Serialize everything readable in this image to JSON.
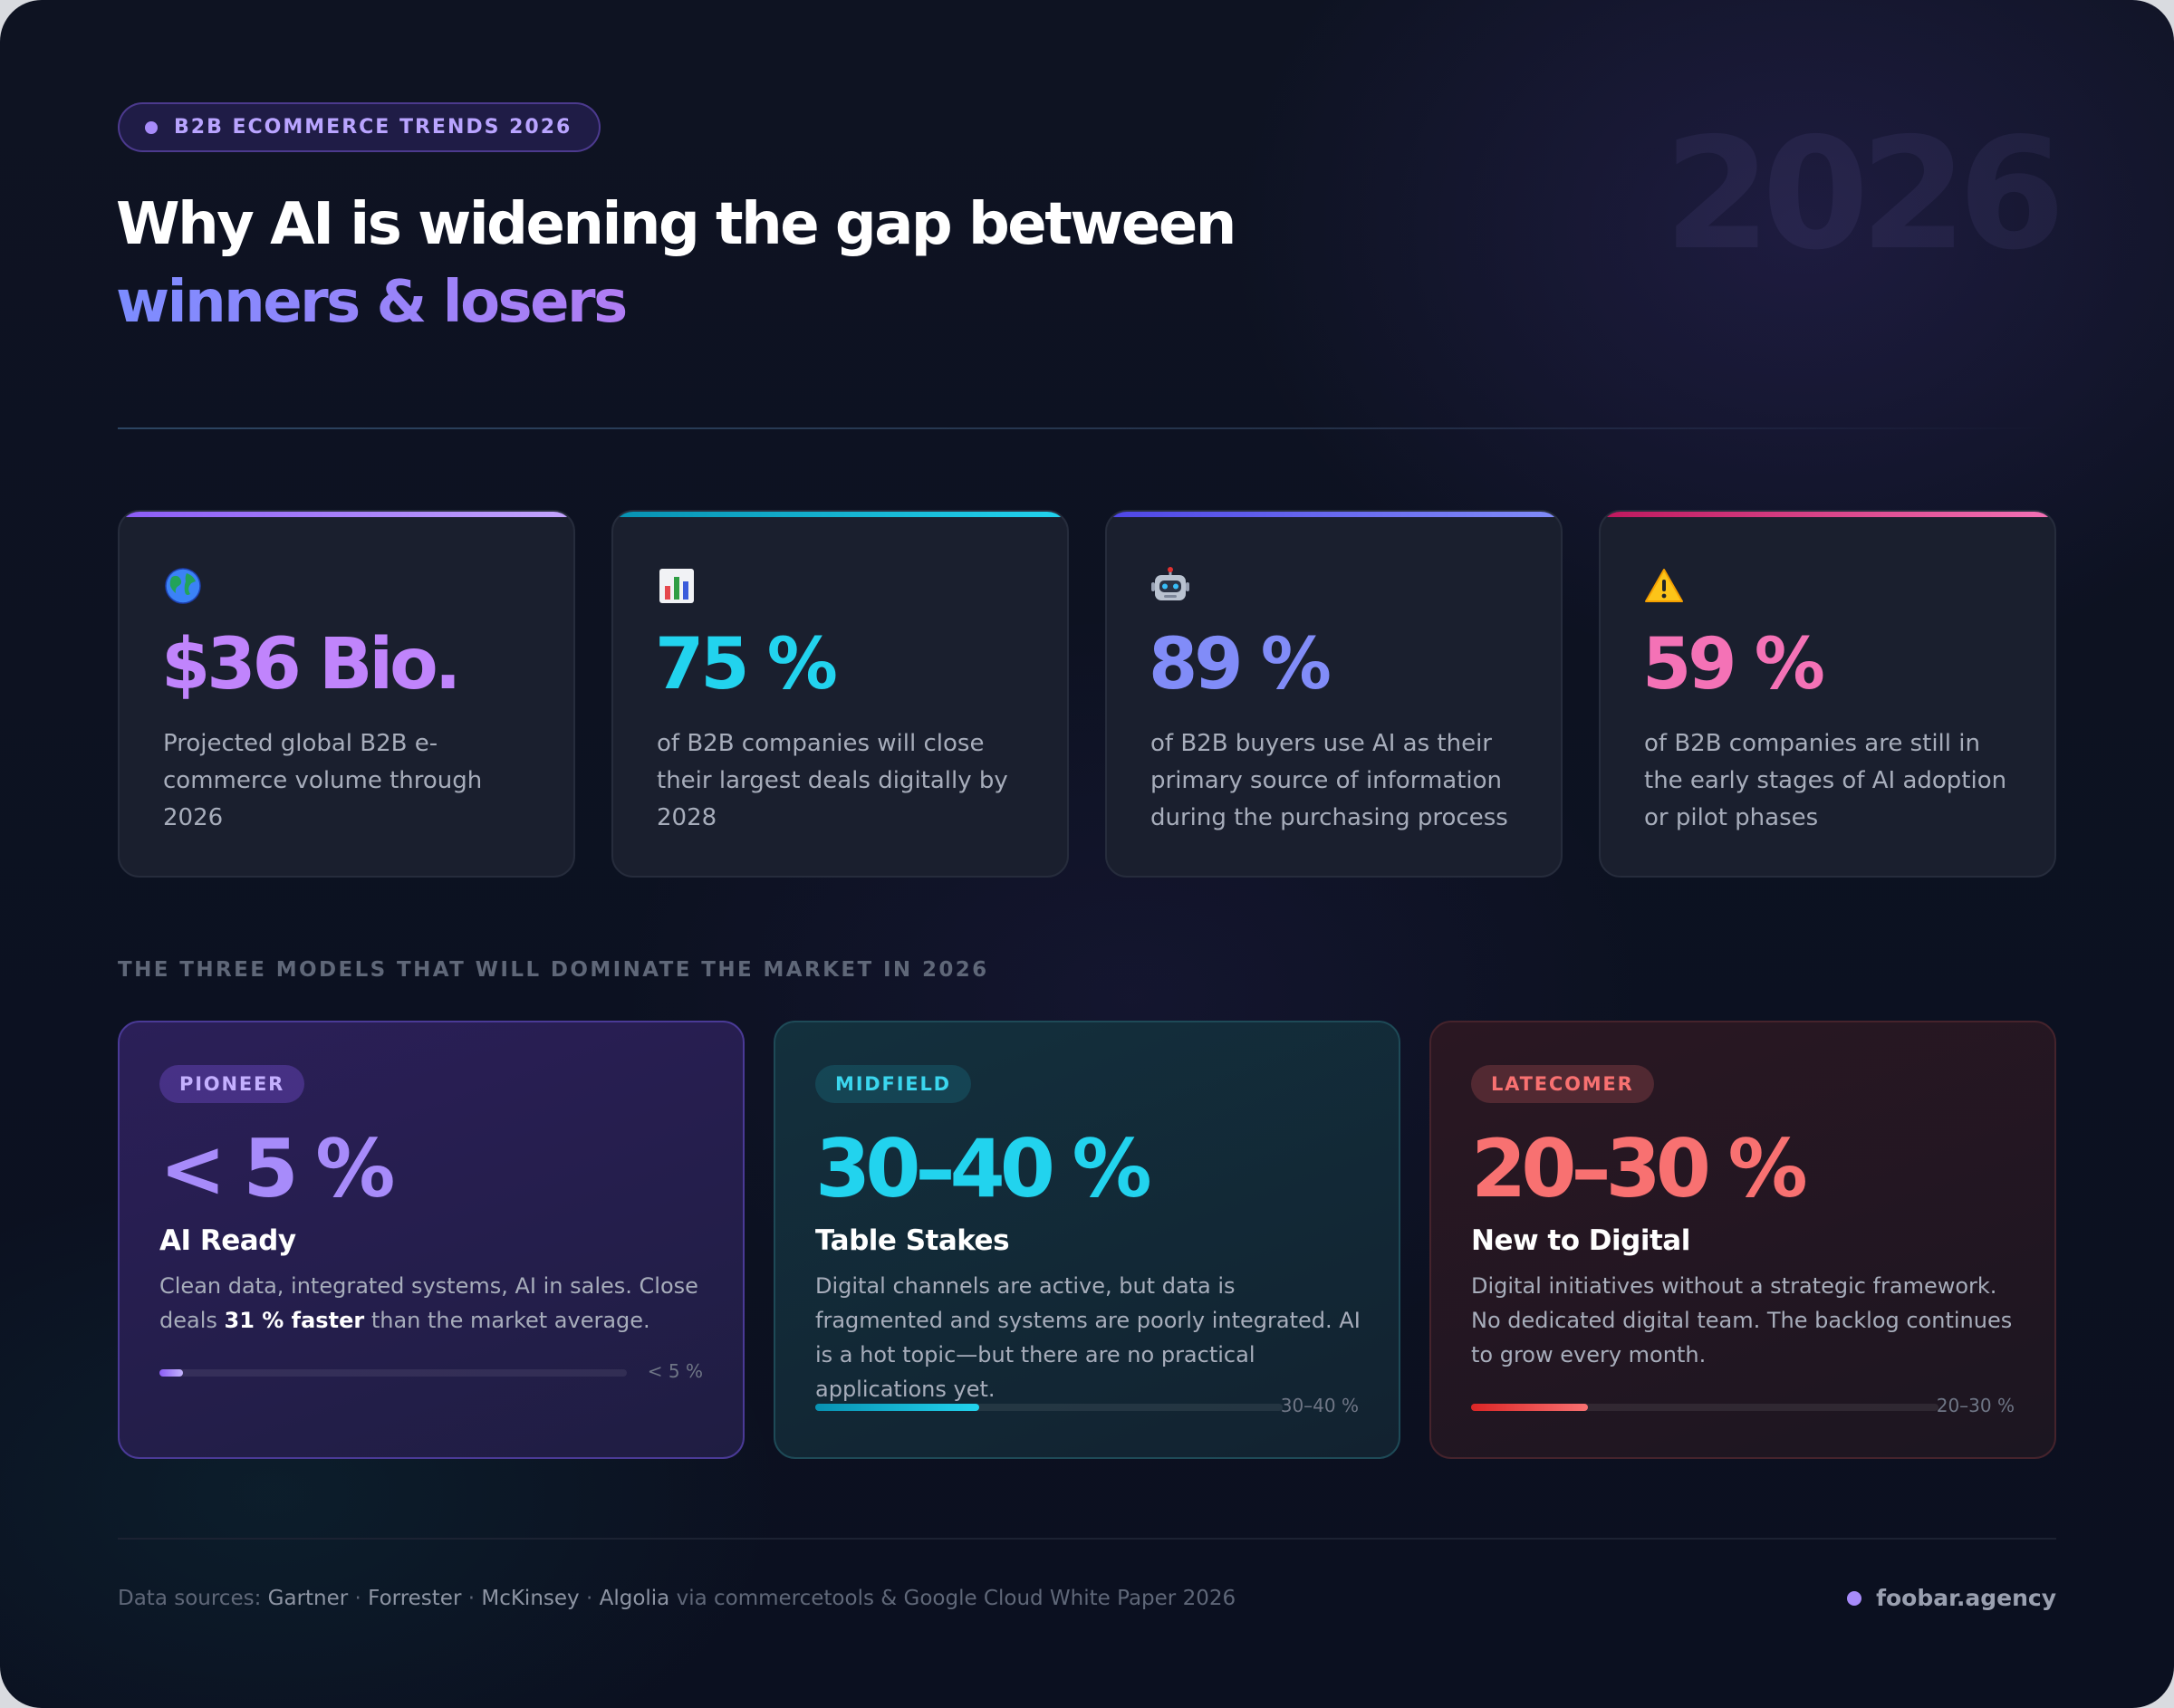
{
  "header": {
    "eyebrow": "B2B ECOMMERCE TRENDS 2026",
    "watermark": "2026",
    "title_line1": "Why AI is widening the gap between",
    "title_line2": "winners & losers"
  },
  "stats": [
    {
      "icon": "globe-icon",
      "value": "$36 Bio.",
      "description": "Projected global B2B e-commerce volume through 2026",
      "color": "#c084fc",
      "bar_gradient": [
        "#8b5cf6",
        "#c4a5fd"
      ]
    },
    {
      "icon": "bar-chart-icon",
      "value": "75 %",
      "description": "of B2B companies will close their largest deals digitally by 2028",
      "color": "#22d3ee",
      "bar_gradient": [
        "#0891b2",
        "#22d3ee"
      ]
    },
    {
      "icon": "robot-icon",
      "value": "89 %",
      "description": "of B2B buyers use AI as their primary source of information during the purchasing process",
      "color": "#818cf8",
      "bar_gradient": [
        "#4f46e5",
        "#818cf8"
      ]
    },
    {
      "icon": "warning-icon",
      "value": "59 %",
      "description": "of B2B companies are still in the early stages of AI adoption or pilot phases",
      "color": "#f472b6",
      "bar_gradient": [
        "#be185d",
        "#f472b6"
      ]
    }
  ],
  "section_heading": "THE THREE MODELS THAT WILL DOMINATE THE MARKET IN 2026",
  "models": [
    {
      "tag": "PIONEER",
      "value": "< 5 %",
      "name": "AI Ready",
      "body_prefix": "Clean data, integrated systems, AI in sales. Close deals ",
      "body_emphasis": "31 % faster",
      "body_suffix": " than the market average.",
      "progress_label": "< 5 %",
      "progress_fraction": 0.05,
      "accent": "#a78bfa"
    },
    {
      "tag": "MIDFIELD",
      "value": "30–40 %",
      "name": "Table Stakes",
      "body": "Digital channels are active, but data is fragmented and systems are poorly integrated. AI is a hot topic—but there are no practical applications yet.",
      "progress_label": "30–40 %",
      "progress_fraction": 0.35,
      "accent": "#22d3ee"
    },
    {
      "tag": "LATECOMER",
      "value": "20–30 %",
      "name": "New to Digital",
      "body": "Digital initiatives without a strategic framework. No dedicated digital team. The backlog continues to grow every month.",
      "progress_label": "20–30 %",
      "progress_fraction": 0.25,
      "accent": "#f87171"
    }
  ],
  "footer": {
    "sources_prefix": "Data sources:",
    "sources": [
      "Gartner",
      "Forrester",
      "McKinsey",
      "Algolia"
    ],
    "sources_suffix": "via commercetools & Google Cloud White Paper 2026",
    "brand": "foobar.agency"
  }
}
